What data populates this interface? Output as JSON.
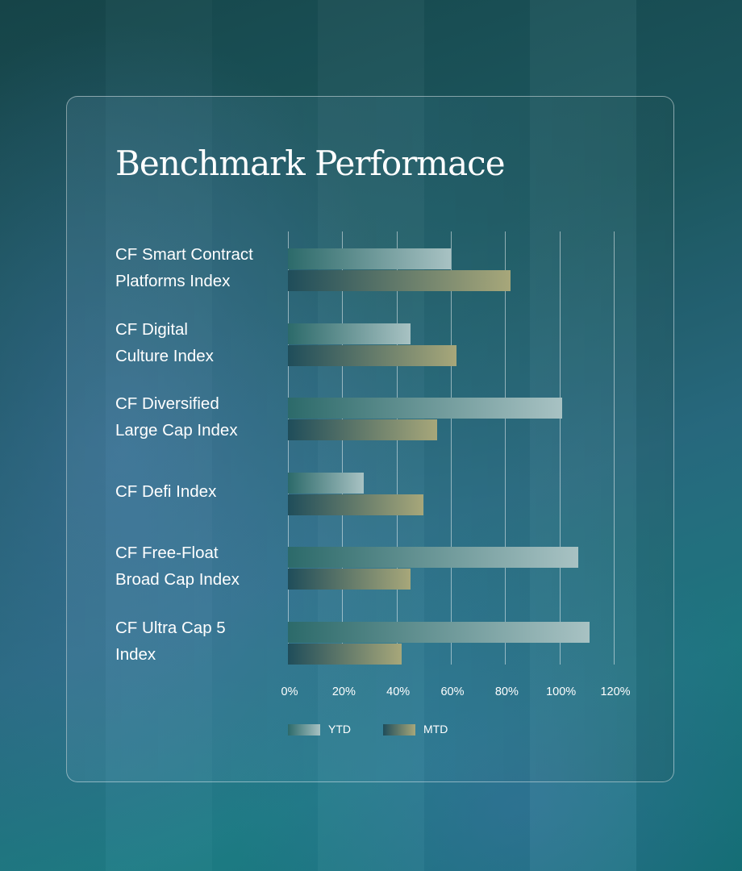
{
  "chart_data": {
    "type": "bar",
    "orientation": "horizontal",
    "title": "Benchmark Performace",
    "categories": [
      [
        "CF Smart Contract",
        "Platforms Index"
      ],
      [
        "CF Digital",
        "Culture Index"
      ],
      [
        "CF Diversified",
        "Large Cap Index"
      ],
      [
        "CF Defi Index"
      ],
      [
        "CF Free-Float",
        "Broad Cap Index"
      ],
      [
        "CF Ultra Cap 5",
        "Index"
      ]
    ],
    "series": [
      {
        "name": "YTD",
        "values": [
          60,
          45,
          101,
          28,
          107,
          111
        ]
      },
      {
        "name": "MTD",
        "values": [
          82,
          62,
          55,
          50,
          45,
          42
        ]
      }
    ],
    "xlim": [
      0,
      120
    ],
    "ticks": [
      "0%",
      "20%",
      "40%",
      "60%",
      "80%",
      "100%",
      "120%"
    ],
    "grid": true,
    "legend_position": "bottom"
  }
}
